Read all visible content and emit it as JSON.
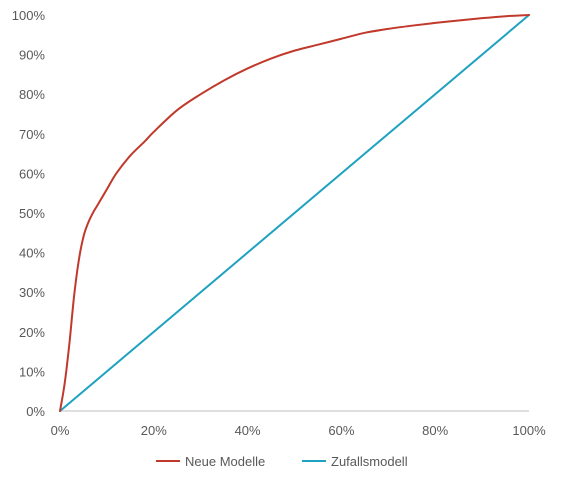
{
  "chart_data": {
    "type": "line",
    "title": "",
    "xlabel": "",
    "ylabel": "",
    "xlim": [
      0,
      100
    ],
    "ylim": [
      0,
      100
    ],
    "x_ticks": [
      "0%",
      "20%",
      "40%",
      "60%",
      "80%",
      "100%"
    ],
    "y_ticks": [
      "0%",
      "10%",
      "20%",
      "30%",
      "40%",
      "50%",
      "60%",
      "70%",
      "80%",
      "90%",
      "100%"
    ],
    "grid": false,
    "legend_position": "bottom",
    "series": [
      {
        "name": "Neue Modelle",
        "color": "#C0392B",
        "points": [
          [
            0,
            0
          ],
          [
            1,
            7
          ],
          [
            2,
            17
          ],
          [
            3,
            29
          ],
          [
            4,
            38
          ],
          [
            5,
            44
          ],
          [
            6,
            47.5
          ],
          [
            7,
            50
          ],
          [
            8,
            52
          ],
          [
            10,
            56
          ],
          [
            12,
            60
          ],
          [
            15,
            64.5
          ],
          [
            18,
            68
          ],
          [
            20,
            70.5
          ],
          [
            25,
            76
          ],
          [
            30,
            80
          ],
          [
            35,
            83.5
          ],
          [
            40,
            86.5
          ],
          [
            45,
            89
          ],
          [
            50,
            91
          ],
          [
            55,
            92.5
          ],
          [
            60,
            94
          ],
          [
            65,
            95.5
          ],
          [
            70,
            96.5
          ],
          [
            75,
            97.3
          ],
          [
            80,
            98
          ],
          [
            85,
            98.6
          ],
          [
            90,
            99.2
          ],
          [
            95,
            99.7
          ],
          [
            100,
            100
          ]
        ]
      },
      {
        "name": "Zufallsmodell",
        "color": "#1FA2C0",
        "points": [
          [
            0,
            0
          ],
          [
            100,
            100
          ]
        ]
      }
    ]
  }
}
